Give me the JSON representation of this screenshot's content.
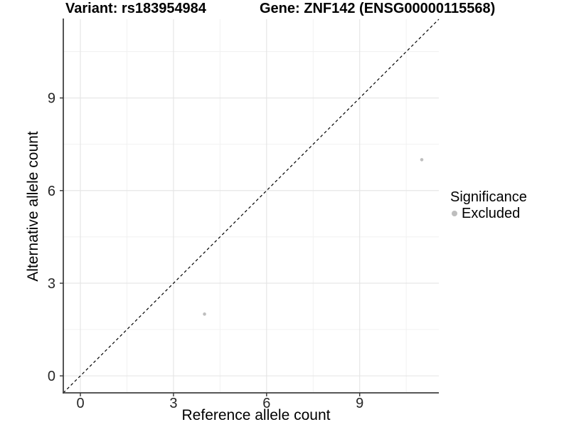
{
  "chart_data": {
    "type": "scatter",
    "title_left": "Variant: rs183954984",
    "title_right": "Gene: ZNF142 (ENSG00000115568)",
    "xlabel": "Reference allele count",
    "ylabel": "Alternative allele count",
    "xlim": [
      -0.55,
      11.55
    ],
    "ylim": [
      -0.55,
      11.55
    ],
    "x_major_ticks": [
      0,
      3,
      6,
      9
    ],
    "y_major_ticks": [
      0,
      3,
      6,
      9
    ],
    "x_minor_ticks": [
      1.5,
      4.5,
      7.5,
      10.5
    ],
    "y_minor_ticks": [
      1.5,
      4.5,
      7.5,
      10.5
    ],
    "grid": true,
    "identity_line": {
      "style": "dashed",
      "equation": "y = x",
      "color": "#000000"
    },
    "series": [
      {
        "name": "Excluded",
        "color": "#bebebe",
        "points": [
          [
            4,
            2
          ],
          [
            11,
            7
          ]
        ]
      }
    ],
    "legend": {
      "title": "Significance",
      "position": "right",
      "entries": [
        {
          "label": "Excluded",
          "color": "#bebebe"
        }
      ]
    },
    "colors": {
      "background": "#ffffff",
      "grid_major": "#e4e4e4",
      "grid_minor": "#f1f1f1",
      "axis_line": "#404040",
      "tick_mark": "#333333",
      "tick_label": "#262626",
      "dashed_line": "#000000"
    }
  }
}
